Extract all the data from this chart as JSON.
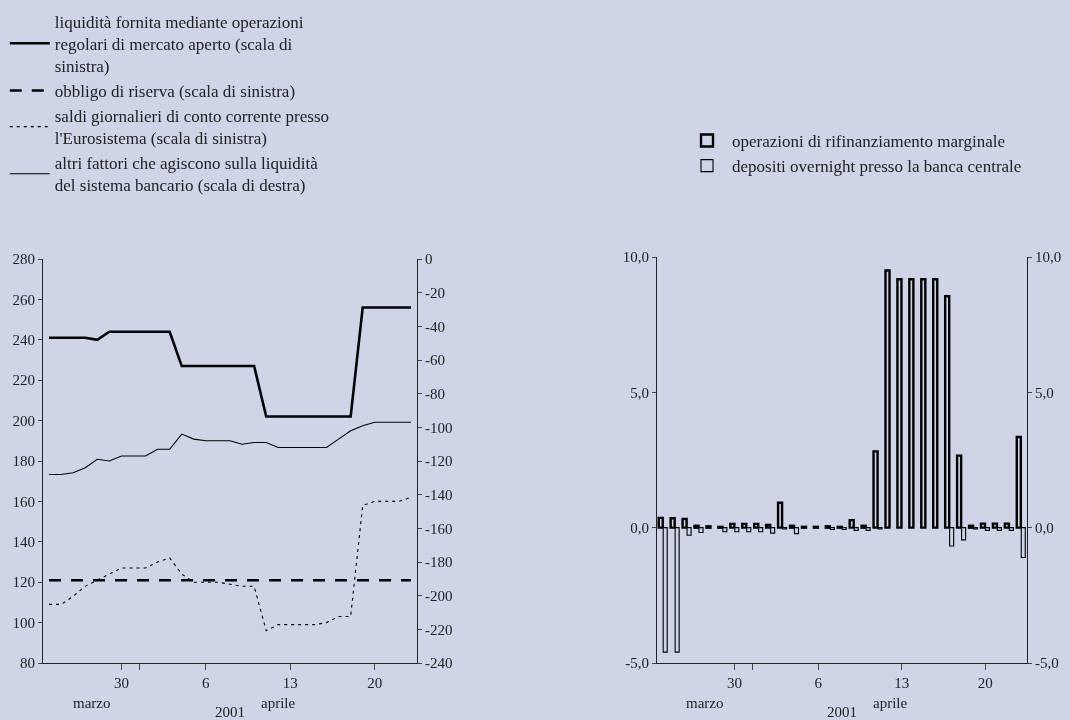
{
  "chart_data": [
    {
      "type": "line",
      "xlabel": "2001",
      "legend": "top left",
      "annotations": [
        "marzo",
        "aprile"
      ],
      "x": [
        "2001-03-24",
        "2001-03-25",
        "2001-03-26",
        "2001-03-27",
        "2001-03-28",
        "2001-03-29",
        "2001-03-30",
        "2001-03-31",
        "2001-04-01",
        "2001-04-02",
        "2001-04-03",
        "2001-04-04",
        "2001-04-05",
        "2001-04-06",
        "2001-04-07",
        "2001-04-08",
        "2001-04-09",
        "2001-04-10",
        "2001-04-11",
        "2001-04-12",
        "2001-04-13",
        "2001-04-14",
        "2001-04-15",
        "2001-04-16",
        "2001-04-17",
        "2001-04-18",
        "2001-04-19",
        "2001-04-20",
        "2001-04-21",
        "2001-04-22",
        "2001-04-23"
      ],
      "xlim": [
        "2001-03-23T12:00",
        "2001-04-23T12:00"
      ],
      "xticks": [
        {
          "value": "2001-03-30",
          "label": "30"
        },
        {
          "value": "2001-03-31T12:00",
          "label": null
        },
        {
          "value": "2001-04-06",
          "label": "6"
        },
        {
          "value": "2001-04-13",
          "label": "13"
        },
        {
          "value": "2001-04-20",
          "label": "20"
        }
      ],
      "ylim": [
        80,
        280
      ],
      "yticks": [
        80,
        100,
        120,
        140,
        160,
        180,
        200,
        220,
        240,
        260,
        280
      ],
      "y2lim": [
        -240,
        0
      ],
      "y2ticks": [
        -240,
        -220,
        -200,
        -180,
        -160,
        -140,
        -120,
        -100,
        -80,
        -60,
        -40,
        -20,
        0
      ],
      "series": [
        {
          "name": "liquidità fornita mediante operazioni regolari di mercato aperto (scala di sinistra)",
          "color": "#000000",
          "line_style": "solid",
          "values": [
            241,
            241,
            241,
            241,
            240,
            244,
            244,
            244,
            244,
            244,
            244,
            227,
            227,
            227,
            227,
            227,
            227,
            227,
            202,
            202,
            202,
            202,
            202,
            202,
            202,
            202,
            256,
            256,
            256,
            256,
            256
          ]
        },
        {
          "name": "obbligo di riserva (scala di sinistra)",
          "color": "#000000",
          "line_style": "dashed",
          "values": [
            121,
            121,
            121,
            121,
            121,
            121,
            121,
            121,
            121,
            121,
            121,
            121,
            121,
            121,
            121,
            121,
            121,
            121,
            121,
            121,
            121,
            121,
            121,
            121,
            121,
            121,
            121,
            121,
            121,
            121,
            121
          ]
        },
        {
          "name": "saldi giornalieri di conto corrente presso l'Eurosistema (scala di sinistra)",
          "color": "#000000",
          "line_style": "dotted",
          "values": [
            109,
            109,
            113,
            118,
            121,
            124,
            127,
            127,
            127,
            130,
            132,
            124,
            120,
            120,
            120,
            119,
            118,
            118,
            96,
            99,
            99,
            99,
            99,
            100,
            103,
            103,
            158,
            160,
            160,
            160,
            162
          ]
        },
        {
          "name": "altri fattori che agiscono sulla liquidità del sistema bancario (scala di destra)",
          "color": "#000000",
          "line_style": "solid",
          "axis": "y2",
          "values": [
            -128,
            -128,
            -127,
            -124,
            -119,
            -120,
            -117,
            -117,
            -117,
            -113,
            -113,
            -104,
            -107,
            -108,
            -108,
            -108,
            -110,
            -109,
            -109,
            -112,
            -112,
            -112,
            -112,
            -112,
            -107,
            -102,
            -99,
            -97,
            -97,
            -97,
            -97
          ]
        }
      ]
    },
    {
      "type": "bar",
      "xlabel": "2001",
      "legend": "top right",
      "annotations": [
        "marzo",
        "aprile"
      ],
      "x": [
        "2001-03-24",
        "2001-03-25",
        "2001-03-26",
        "2001-03-27",
        "2001-03-28",
        "2001-03-29",
        "2001-03-30",
        "2001-03-31",
        "2001-04-01",
        "2001-04-02",
        "2001-04-03",
        "2001-04-04",
        "2001-04-05",
        "2001-04-06",
        "2001-04-07",
        "2001-04-08",
        "2001-04-09",
        "2001-04-10",
        "2001-04-11",
        "2001-04-12",
        "2001-04-13",
        "2001-04-14",
        "2001-04-15",
        "2001-04-16",
        "2001-04-17",
        "2001-04-18",
        "2001-04-19",
        "2001-04-20",
        "2001-04-21",
        "2001-04-22",
        "2001-04-23"
      ],
      "xlim": [
        "2001-03-23T12:00",
        "2001-04-23T12:00"
      ],
      "xticks": [
        {
          "value": "2001-03-30",
          "label": "30"
        },
        {
          "value": "2001-03-31T12:00",
          "label": null
        },
        {
          "value": "2001-04-06",
          "label": "6"
        },
        {
          "value": "2001-04-13",
          "label": "13"
        },
        {
          "value": "2001-04-20",
          "label": "20"
        }
      ],
      "ylim": [
        -5,
        10
      ],
      "yticks": [
        {
          "value": -5,
          "label": "-5,0"
        },
        {
          "value": 0,
          "label": "0,0"
        },
        {
          "value": 5,
          "label": "5,0"
        },
        {
          "value": 10,
          "label": "10,0"
        }
      ],
      "y2lim": [
        -5,
        10
      ],
      "y2ticks": [
        {
          "value": -5,
          "label": "-5,0"
        },
        {
          "value": 0,
          "label": "0,0"
        },
        {
          "value": 5,
          "label": "5,0"
        },
        {
          "value": 10,
          "label": "10,0"
        }
      ],
      "series": [
        {
          "name": "operazioni di rifinanziamento marginale",
          "color": "#000000",
          "values": [
            0.36,
            0.35,
            0.32,
            0.07,
            0.05,
            0.03,
            0.14,
            0.14,
            0.14,
            0.1,
            0.92,
            0.07,
            0.03,
            0.03,
            0.05,
            0.03,
            0.28,
            0.07,
            2.82,
            9.5,
            9.18,
            9.18,
            9.18,
            9.18,
            8.55,
            2.66,
            0.07,
            0.15,
            0.15,
            0.15,
            3.35
          ]
        },
        {
          "name": "depositi overnight presso la banca centrale",
          "color": "#000000",
          "values": [
            -4.6,
            -4.6,
            -0.28,
            -0.18,
            null,
            -0.15,
            -0.15,
            -0.15,
            -0.15,
            -0.2,
            -0.05,
            -0.22,
            null,
            null,
            -0.07,
            -0.07,
            -0.1,
            -0.1,
            -0.05,
            null,
            null,
            null,
            null,
            null,
            -0.68,
            -0.45,
            -0.05,
            -0.1,
            -0.1,
            -0.1,
            -1.1
          ]
        }
      ]
    }
  ]
}
